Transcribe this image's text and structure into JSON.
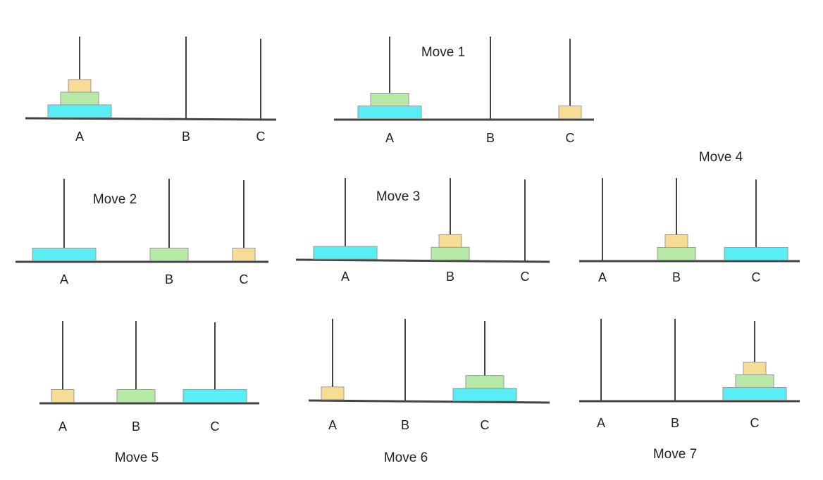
{
  "disk_colors": {
    "small": "#f6dc95",
    "medium": "#b6eaa6",
    "large": "#59eef3"
  },
  "disk_stroke": "#9a9a9a",
  "rod_color": "#444444",
  "panels": [
    {
      "caption": "",
      "pegs": [
        {
          "label": "A",
          "disks": [
            "large",
            "medium",
            "small"
          ]
        },
        {
          "label": "B",
          "disks": []
        },
        {
          "label": "C",
          "disks": []
        }
      ]
    },
    {
      "caption": "Move 1",
      "pegs": [
        {
          "label": "A",
          "disks": [
            "large",
            "medium"
          ]
        },
        {
          "label": "B",
          "disks": []
        },
        {
          "label": "C",
          "disks": [
            "small"
          ]
        }
      ]
    },
    {
      "caption": "Move 2",
      "pegs": [
        {
          "label": "A",
          "disks": [
            "large"
          ]
        },
        {
          "label": "B",
          "disks": [
            "medium"
          ]
        },
        {
          "label": "C",
          "disks": [
            "small"
          ]
        }
      ]
    },
    {
      "caption": "Move 3",
      "pegs": [
        {
          "label": "A",
          "disks": [
            "large"
          ]
        },
        {
          "label": "B",
          "disks": [
            "medium",
            "small"
          ]
        },
        {
          "label": "C",
          "disks": []
        }
      ]
    },
    {
      "caption": "Move 4",
      "pegs": [
        {
          "label": "A",
          "disks": []
        },
        {
          "label": "B",
          "disks": [
            "medium",
            "small"
          ]
        },
        {
          "label": "C",
          "disks": [
            "large"
          ]
        }
      ]
    },
    {
      "caption": "Move 5",
      "pegs": [
        {
          "label": "A",
          "disks": [
            "small"
          ]
        },
        {
          "label": "B",
          "disks": [
            "medium"
          ]
        },
        {
          "label": "C",
          "disks": [
            "large"
          ]
        }
      ]
    },
    {
      "caption": "Move 6",
      "pegs": [
        {
          "label": "A",
          "disks": [
            "small"
          ]
        },
        {
          "label": "B",
          "disks": []
        },
        {
          "label": "C",
          "disks": [
            "large",
            "medium"
          ]
        }
      ]
    },
    {
      "caption": "Move 7",
      "pegs": [
        {
          "label": "A",
          "disks": []
        },
        {
          "label": "B",
          "disks": []
        },
        {
          "label": "C",
          "disks": [
            "large",
            "medium",
            "small"
          ]
        }
      ]
    }
  ]
}
